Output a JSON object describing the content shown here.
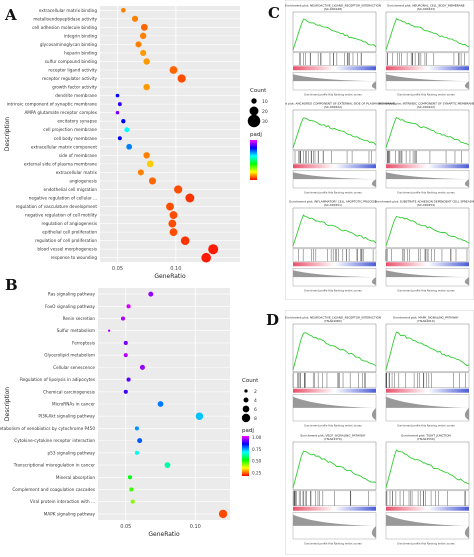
{
  "panels": {
    "a": "A",
    "b": "B",
    "c": "C",
    "d": "D"
  },
  "chart_data": [
    {
      "type": "scatter",
      "panel": "A",
      "xlabel": "GeneRatio",
      "ylabel": "Description",
      "xlim": [
        0.035,
        0.155
      ],
      "xticks": [
        0.05,
        0.1
      ],
      "xtick_labels": [
        "0.05",
        "0.10"
      ],
      "categories": [
        "extracellular matrix binding",
        "metalloendopeptidase activity",
        "cell adhesion molecule binding",
        "integrin binding",
        "glycosaminoglycan binding",
        "heparin binding",
        "sulfur compound binding",
        "receptor ligand activity",
        "receptor regulator activity",
        "growth factor activity",
        "dendrite membrane",
        "intrinsic component of synaptic membrane",
        "AMPA glutamate receptor complex",
        "excitatory synapse",
        "cell projection membrane",
        "cell body membrane",
        "extracellular matrix component",
        "side of membrane",
        "external side of plasma membrane",
        "extracellular matrix",
        "angiogenesis",
        "endothelial cell migration",
        "negative regulation of cellular ...",
        "regulation of vasculature development",
        "negative regulation of cell motility",
        "regulation of angiogenesis",
        "epithelial cell proliferation",
        "regulation of cell proliferation",
        "blood vessel morphogenesis",
        "response to wounding"
      ],
      "x": [
        0.055,
        0.065,
        0.073,
        0.072,
        0.068,
        0.072,
        0.075,
        0.098,
        0.105,
        0.075,
        0.05,
        0.052,
        0.05,
        0.055,
        0.058,
        0.052,
        0.06,
        0.075,
        0.078,
        0.07,
        0.08,
        0.102,
        0.112,
        0.095,
        0.098,
        0.097,
        0.098,
        0.108,
        0.132,
        0.126
      ],
      "count": [
        8,
        12,
        14,
        13,
        12,
        12,
        13,
        17,
        18,
        13,
        5,
        6,
        5,
        7,
        9,
        6,
        11,
        13,
        14,
        12,
        15,
        18,
        20,
        17,
        17,
        17,
        17,
        19,
        23,
        22
      ],
      "padj": [
        0.05,
        0.05,
        0.04,
        0.05,
        0.05,
        0.06,
        0.06,
        0.04,
        0.03,
        0.06,
        0.4,
        0.42,
        0.45,
        0.4,
        0.3,
        0.4,
        0.35,
        0.05,
        0.08,
        0.05,
        0.04,
        0.03,
        0.02,
        0.03,
        0.03,
        0.03,
        0.03,
        0.02,
        0.01,
        0.01
      ],
      "legend": {
        "count_title": "Count",
        "count_values": [
          10,
          20,
          30
        ],
        "padj_title": "padj"
      },
      "color_scale": [
        "#ff0000",
        "#ffff00",
        "#00ff00",
        "#00ffff",
        "#0000ff",
        "#ff00ff"
      ]
    },
    {
      "type": "scatter",
      "panel": "B",
      "xlabel": "GeneRatio",
      "ylabel": "Description",
      "xlim": [
        0.03,
        0.125
      ],
      "xticks": [
        0.05,
        0.1
      ],
      "xtick_labels": [
        "0.05",
        "0.10"
      ],
      "categories": [
        "Ras signaling pathway",
        "FoxO signaling pathway",
        "Renin secretion",
        "Sulfur metabolism",
        "Ferroptosis",
        "Glycerolipid metabolism",
        "Cellular senescence",
        "Regulation of lipolysis in adipocytes",
        "Chemical carcinogenesis",
        "MicroRNAs in cancer",
        "PI3K-Akt signaling pathway",
        "Metabolism of xenobiotics by cytochrome P450",
        "Cytokine-cytokine receptor interaction",
        "p53 signaling pathway",
        "Transcriptional misregulation in cancer",
        "Mineral absorption",
        "Complement and coagulation cascades",
        "Viral protein interaction with ...",
        "MAPK signaling pathway"
      ],
      "x": [
        0.068,
        0.052,
        0.048,
        0.038,
        0.05,
        0.05,
        0.062,
        0.052,
        0.05,
        0.075,
        0.103,
        0.058,
        0.06,
        0.058,
        0.08,
        0.053,
        0.054,
        0.055,
        0.12
      ],
      "count": [
        4,
        3,
        3,
        1,
        3,
        3,
        4,
        3,
        3,
        5,
        7,
        3,
        4,
        3,
        5,
        3,
        3,
        3,
        8
      ],
      "padj": [
        0.78,
        0.82,
        0.8,
        0.8,
        0.76,
        0.8,
        0.78,
        0.74,
        0.72,
        0.6,
        0.55,
        0.58,
        0.62,
        0.5,
        0.45,
        0.35,
        0.3,
        0.25,
        0.05
      ],
      "legend": {
        "count_title": "Count",
        "count_values": [
          2,
          4,
          6,
          8
        ],
        "padj_title": "padj",
        "padj_values": [
          "1.00",
          "0.75",
          "0.50",
          "0.25"
        ]
      },
      "color_scale": [
        "#ff0000",
        "#ffff00",
        "#00ff00",
        "#00ffff",
        "#0000ff",
        "#ff00ff"
      ]
    }
  ],
  "gsea_c": [
    {
      "title": "Enrichment plot: NEUROACTIVE_LIGAND_RECEPTOR_INTERACTION",
      "subtitle": "(SC-000148)",
      "legend": "Enrichment profile   Hits   Ranking metric scores"
    },
    {
      "title": "Enrichment plot: NEURONAL_CELL_BODY_MEMBRANE",
      "subtitle": "(SC-000233)",
      "legend": "Enrichment profile   Hits   Ranking metric scores"
    },
    {
      "title": "Enrichment plot: ANCHORED COMPONENT OF EXTERNAL SIDE OF PLASMA MEMBRANE",
      "subtitle": "(SC-000222)",
      "legend": "Enrichment profile   Hits   Ranking metric scores"
    },
    {
      "title": "Enrichment plot: INTRINSIC COMPONENT OF SYNAPTIC MEMBRANE",
      "subtitle": "(SC-000222)",
      "legend": "Enrichment profile   Hits   Ranking metric scores"
    },
    {
      "title": "Enrichment plot: INFLAMMATORY CELL APOPTOTIC PROCESS",
      "subtitle": "(SC-000251)",
      "legend": "Enrichment profile   Hits   Ranking metric scores"
    },
    {
      "title": "Enrichment plot: SUBSTRATE ADHESION DEPENDENT CELL SPREADING",
      "subtitle": "(SC-000254)",
      "legend": "Enrichment profile   Hits   Ranking metric scores"
    }
  ],
  "gsea_d": [
    {
      "title": "Enrichment plot: NEUROACTIVE_LIGAND_RECEPTOR_INTERACTION",
      "subtitle": "(HSA04080)",
      "legend": "Enrichment profile   Hits   Ranking metric scores"
    },
    {
      "title": "Enrichment plot: MAPK_SIGNALING_PATHWAY",
      "subtitle": "(HSA04010)",
      "legend": "Enrichment profile   Hits   Ranking metric scores"
    },
    {
      "title": "Enrichment plot: VEGF_SIGNALING_PATHWAY",
      "subtitle": "(HSA04370)",
      "legend": "Enrichment profile   Hits   Ranking metric scores"
    },
    {
      "title": "Enrichment plot: TIGHT_JUNCTION",
      "subtitle": "(HSA04530)",
      "legend": "Enrichment profile   Hits   Ranking metric scores"
    }
  ]
}
